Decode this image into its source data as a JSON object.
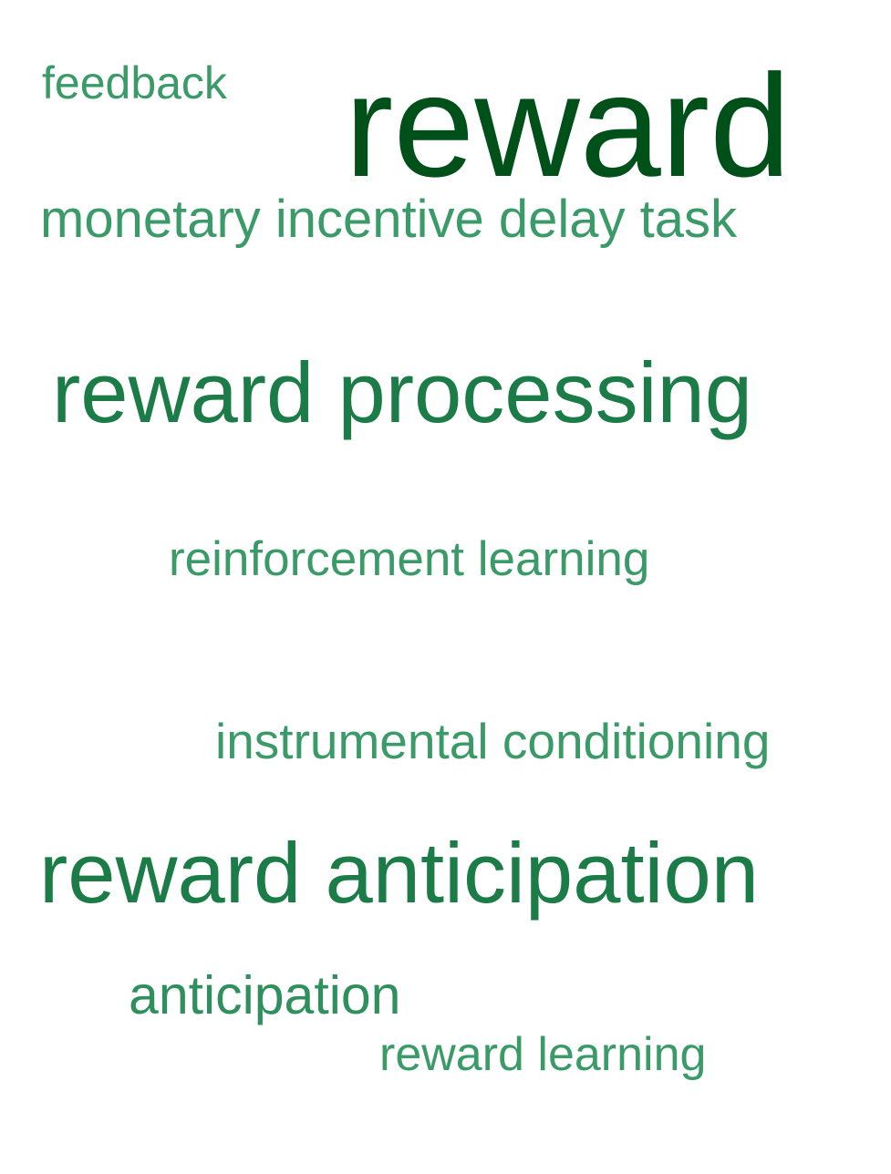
{
  "word_cloud": {
    "words": [
      {
        "text": "feedback",
        "color": "#3a9a68"
      },
      {
        "text": "reward",
        "color": "#005019"
      },
      {
        "text": "monetary incentive delay task",
        "color": "#3a9a68"
      },
      {
        "text": "reward processing",
        "color": "#1b7c48"
      },
      {
        "text": "reinforcement learning",
        "color": "#3a9a68"
      },
      {
        "text": "instrumental conditioning",
        "color": "#3a9a68"
      },
      {
        "text": "reward anticipation",
        "color": "#1b7c48"
      },
      {
        "text": "anticipation",
        "color": "#2f8f5d"
      },
      {
        "text": "reward learning",
        "color": "#3a9a68"
      }
    ]
  }
}
